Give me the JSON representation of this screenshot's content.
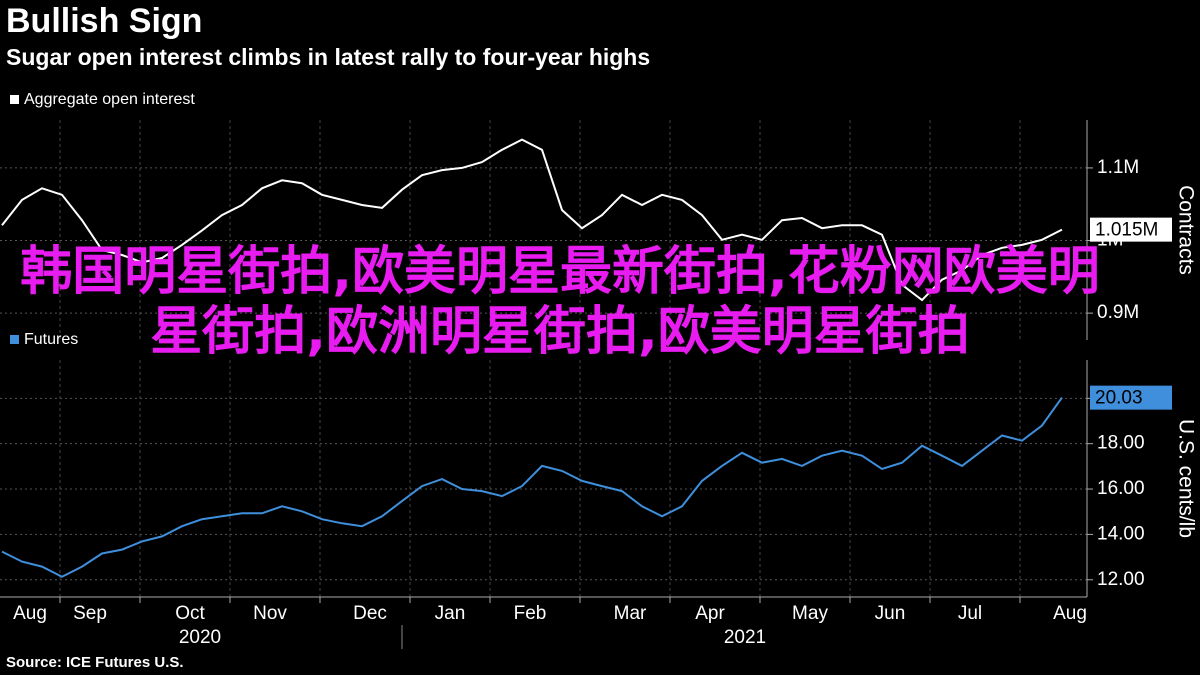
{
  "header": {
    "title": "Bullish Sign",
    "subtitle": "Sugar open interest climbs in latest rally to four-year highs"
  },
  "chart_data": [
    {
      "type": "line",
      "y_title": "Contracts",
      "ylim": [
        863000,
        1166000
      ],
      "yticks": [
        {
          "value": 900000,
          "label": "0.9M"
        },
        {
          "value": 1000000,
          "label": "1M"
        },
        {
          "value": 1100000,
          "label": "1.1M"
        }
      ],
      "grid": true,
      "series": [
        {
          "name": "Aggregate open interest",
          "color": "#ffffff",
          "values": [
            1021000,
            1056000,
            1072000,
            1063000,
            1028000,
            987000,
            980000,
            970000,
            976000,
            994000,
            1014000,
            1035000,
            1049000,
            1072000,
            1083000,
            1079000,
            1063000,
            1056000,
            1049000,
            1045000,
            1070000,
            1090000,
            1097000,
            1100000,
            1108000,
            1125000,
            1139000,
            1125000,
            1042000,
            1017000,
            1035000,
            1063000,
            1049000,
            1063000,
            1056000,
            1035000,
            1001000,
            1008000,
            1001000,
            1028000,
            1031000,
            1017000,
            1021000,
            1021000,
            1008000,
            939000,
            918000,
            946000,
            959000,
            980000,
            990000,
            994000,
            1001000,
            1015000
          ],
          "value_labels": [
            null,
            null,
            null,
            null,
            null,
            null,
            null,
            null,
            null,
            null,
            null,
            null,
            null,
            null,
            null,
            null,
            null,
            null,
            null,
            null,
            null,
            null,
            null,
            null,
            null,
            null,
            null,
            null,
            null,
            null,
            null,
            null,
            null,
            null,
            null,
            null,
            null,
            null,
            null,
            null,
            null,
            null,
            null,
            null,
            null,
            null,
            null,
            null,
            null,
            null,
            null,
            null,
            null,
            "1.015M"
          ]
        }
      ]
    },
    {
      "type": "line",
      "y_title": "U.S. cents/lb",
      "ylim": [
        11.24,
        21.69
      ],
      "yticks": [
        {
          "value": 12,
          "label": "12.00"
        },
        {
          "value": 14,
          "label": "14.00"
        },
        {
          "value": 16,
          "label": "16.00"
        },
        {
          "value": 18,
          "label": "18.00"
        },
        {
          "value": 20,
          "label": "20.00"
        }
      ],
      "grid": true,
      "categories": [
        null,
        "Aug",
        null,
        null,
        "Sep",
        null,
        null,
        null,
        null,
        "Oct",
        null,
        null,
        null,
        "Nov",
        null,
        null,
        null,
        null,
        "Dec",
        null,
        null,
        null,
        "Jan",
        null,
        null,
        null,
        "Feb",
        null,
        null,
        null,
        null,
        "Mar",
        null,
        null,
        null,
        "Apr",
        null,
        null,
        null,
        null,
        "May",
        null,
        null,
        null,
        "Jun",
        null,
        null,
        null,
        "Jul",
        null,
        null,
        null,
        null,
        "Aug"
      ],
      "x_groups": [
        "2020",
        "2021"
      ],
      "series": [
        {
          "name": "Futures",
          "color": "#3f8fdc",
          "values": [
            13.24,
            12.8,
            12.58,
            12.13,
            12.58,
            13.16,
            13.33,
            13.69,
            13.91,
            14.36,
            14.67,
            14.8,
            14.93,
            14.93,
            15.24,
            15.02,
            14.67,
            14.49,
            14.36,
            14.8,
            15.47,
            16.13,
            16.44,
            16.0,
            15.91,
            15.69,
            16.13,
            17.02,
            16.8,
            16.36,
            16.13,
            15.91,
            15.24,
            14.8,
            15.24,
            16.36,
            17.02,
            17.6,
            17.16,
            17.33,
            17.02,
            17.47,
            17.69,
            17.47,
            16.89,
            17.16,
            17.91,
            17.47,
            17.02,
            17.69,
            18.36,
            18.13,
            18.8,
            20.03
          ]
        }
      ]
    }
  ],
  "overlay_text": "韩国明星街拍,欧美明星最新街拍,花粉网欧美明星街拍,欧洲明星街拍,欧美明星街拍",
  "source": "Source: ICE Futures U.S."
}
